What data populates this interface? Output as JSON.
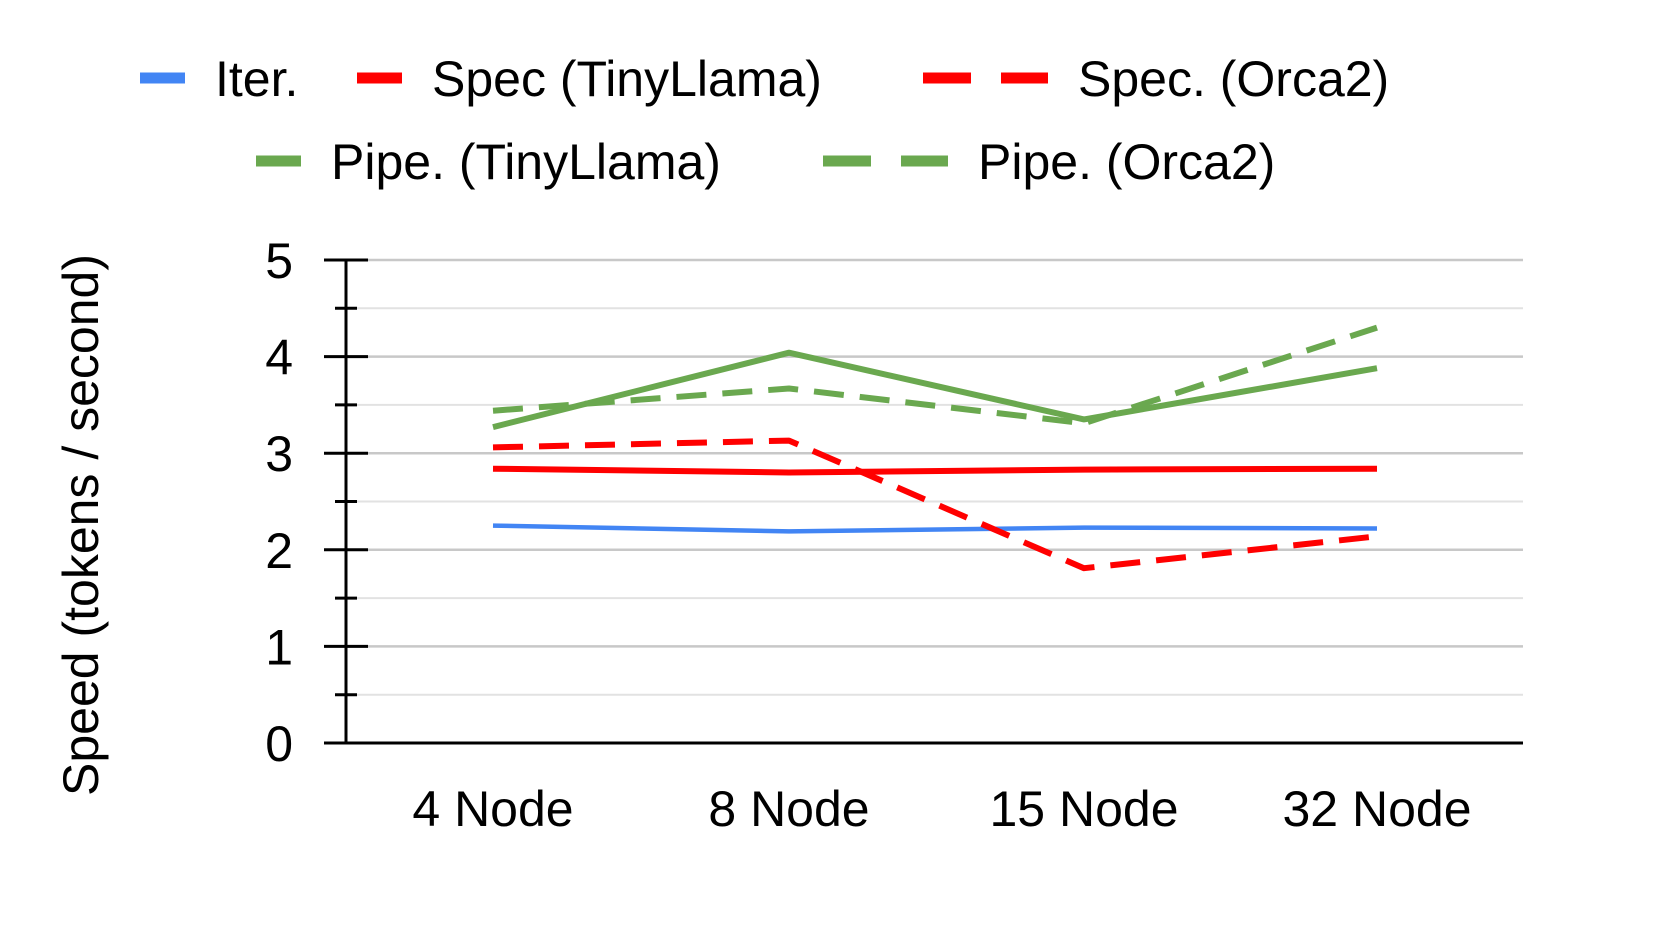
{
  "chart_data": {
    "type": "line",
    "title": "",
    "xlabel": "",
    "ylabel": "Speed (tokens / second)",
    "categories": [
      "4 Node",
      "8 Node",
      "15 Node",
      "32 Node"
    ],
    "ylim": [
      0,
      5
    ],
    "yticks": [
      "0",
      "1",
      "2",
      "3",
      "4",
      "5"
    ],
    "grid": true,
    "legend_position": "top",
    "series": [
      {
        "name": "Iter.",
        "color": "#4285F4",
        "dashed": false,
        "values": [
          2.25,
          2.19,
          2.23,
          2.22
        ]
      },
      {
        "name": "Spec (TinyLlama)",
        "color": "#FF0000",
        "dashed": false,
        "values": [
          2.84,
          2.8,
          2.83,
          2.84
        ]
      },
      {
        "name": "Spec. (Orca2)",
        "color": "#FF0000",
        "dashed": true,
        "values": [
          3.06,
          3.13,
          1.81,
          2.14
        ]
      },
      {
        "name": "Pipe. (TinyLlama)",
        "color": "#6AA84F",
        "dashed": false,
        "values": [
          3.27,
          4.04,
          3.35,
          3.88
        ]
      },
      {
        "name": "Pipe. (Orca2)",
        "color": "#6AA84F",
        "dashed": true,
        "values": [
          3.44,
          3.67,
          3.31,
          4.3
        ]
      }
    ]
  }
}
